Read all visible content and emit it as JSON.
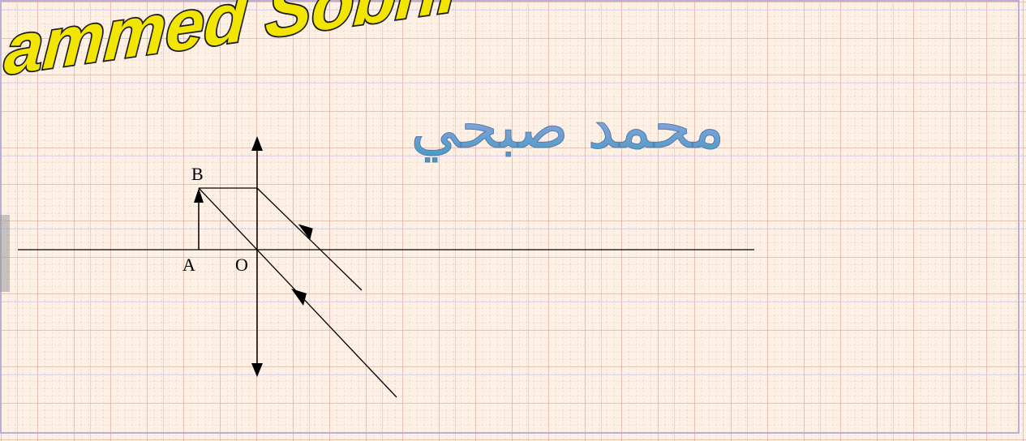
{
  "logo_text": "ammed Sobhi",
  "arabic_title": "محمد صبحي",
  "points": {
    "a": "A",
    "b": "B",
    "o": "O"
  },
  "colors": {
    "paper": "#fdf1e6",
    "grid_minor": "#e6bfb0",
    "grid_major": "#c8c0e6",
    "logo_fill": "#f2e600",
    "arabic_fill": "#6fa8d8",
    "ink": "#000000"
  }
}
